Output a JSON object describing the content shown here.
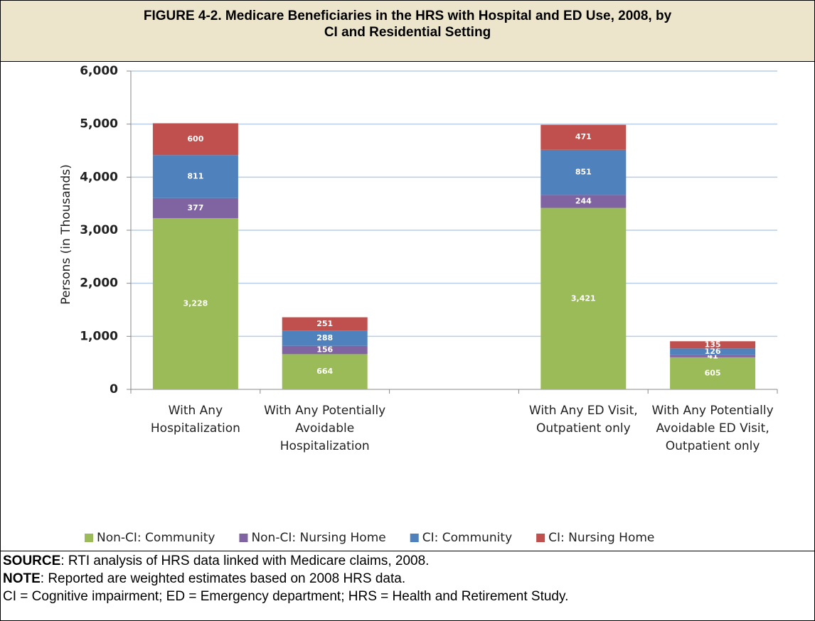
{
  "title": "FIGURE 4-2. Medicare Beneficiaries in the HRS with Hospital and ED Use, 2008, by CI and Residential Setting",
  "chart_data": {
    "type": "stacked_bar",
    "y_label": "Persons (in Thousands)",
    "categories": [
      "With Any Hospitalization",
      "With Any Potentially Avoidable Hospitalization",
      null,
      "With Any ED Visit, Outpatient only",
      "With Any Potentially Avoidable ED Visit, Outpatient only"
    ],
    "series": [
      {
        "name": "Non-CI: Community",
        "color": "#9bbb59",
        "values": [
          3228,
          664,
          null,
          3421,
          605
        ],
        "value_labels": [
          "3,228",
          "664",
          null,
          "3,421",
          "605"
        ]
      },
      {
        "name": "Non-CI: Nursing Home",
        "color": "#8064a2",
        "values": [
          377,
          156,
          null,
          244,
          41
        ],
        "value_labels": [
          "377",
          "156",
          null,
          "244",
          "41"
        ]
      },
      {
        "name": "CI: Community",
        "color": "#4f81bd",
        "values": [
          811,
          288,
          null,
          851,
          126
        ],
        "value_labels": [
          "811",
          "288",
          null,
          "851",
          "126"
        ]
      },
      {
        "name": "CI: Nursing Home",
        "color": "#c0504d",
        "values": [
          600,
          251,
          null,
          471,
          135
        ],
        "value_labels": [
          "600",
          "251",
          null,
          "471",
          "135"
        ]
      }
    ],
    "ylim": [
      0,
      6000
    ],
    "yticks": [
      0,
      {
        "value": 1000,
        "label": "1,000"
      },
      {
        "value": 2000,
        "label": "2,000"
      },
      {
        "value": 3000,
        "label": "3,000"
      },
      {
        "value": 4000,
        "label": "4,000"
      },
      {
        "value": 5000,
        "label": "5,000"
      },
      {
        "value": 6000,
        "label": "6,000"
      }
    ],
    "grid": true,
    "legend": "bottom"
  },
  "footer": {
    "source": {
      "label": "SOURCE",
      "text": ":  RTI analysis of HRS data linked with Medicare claims, 2008."
    },
    "note": {
      "label": "NOTE",
      "text": ":  Reported are weighted estimates based on 2008 HRS data."
    },
    "abbreviations": "CI = Cognitive impairment; ED = Emergency department; HRS = Health and Retirement Study."
  }
}
